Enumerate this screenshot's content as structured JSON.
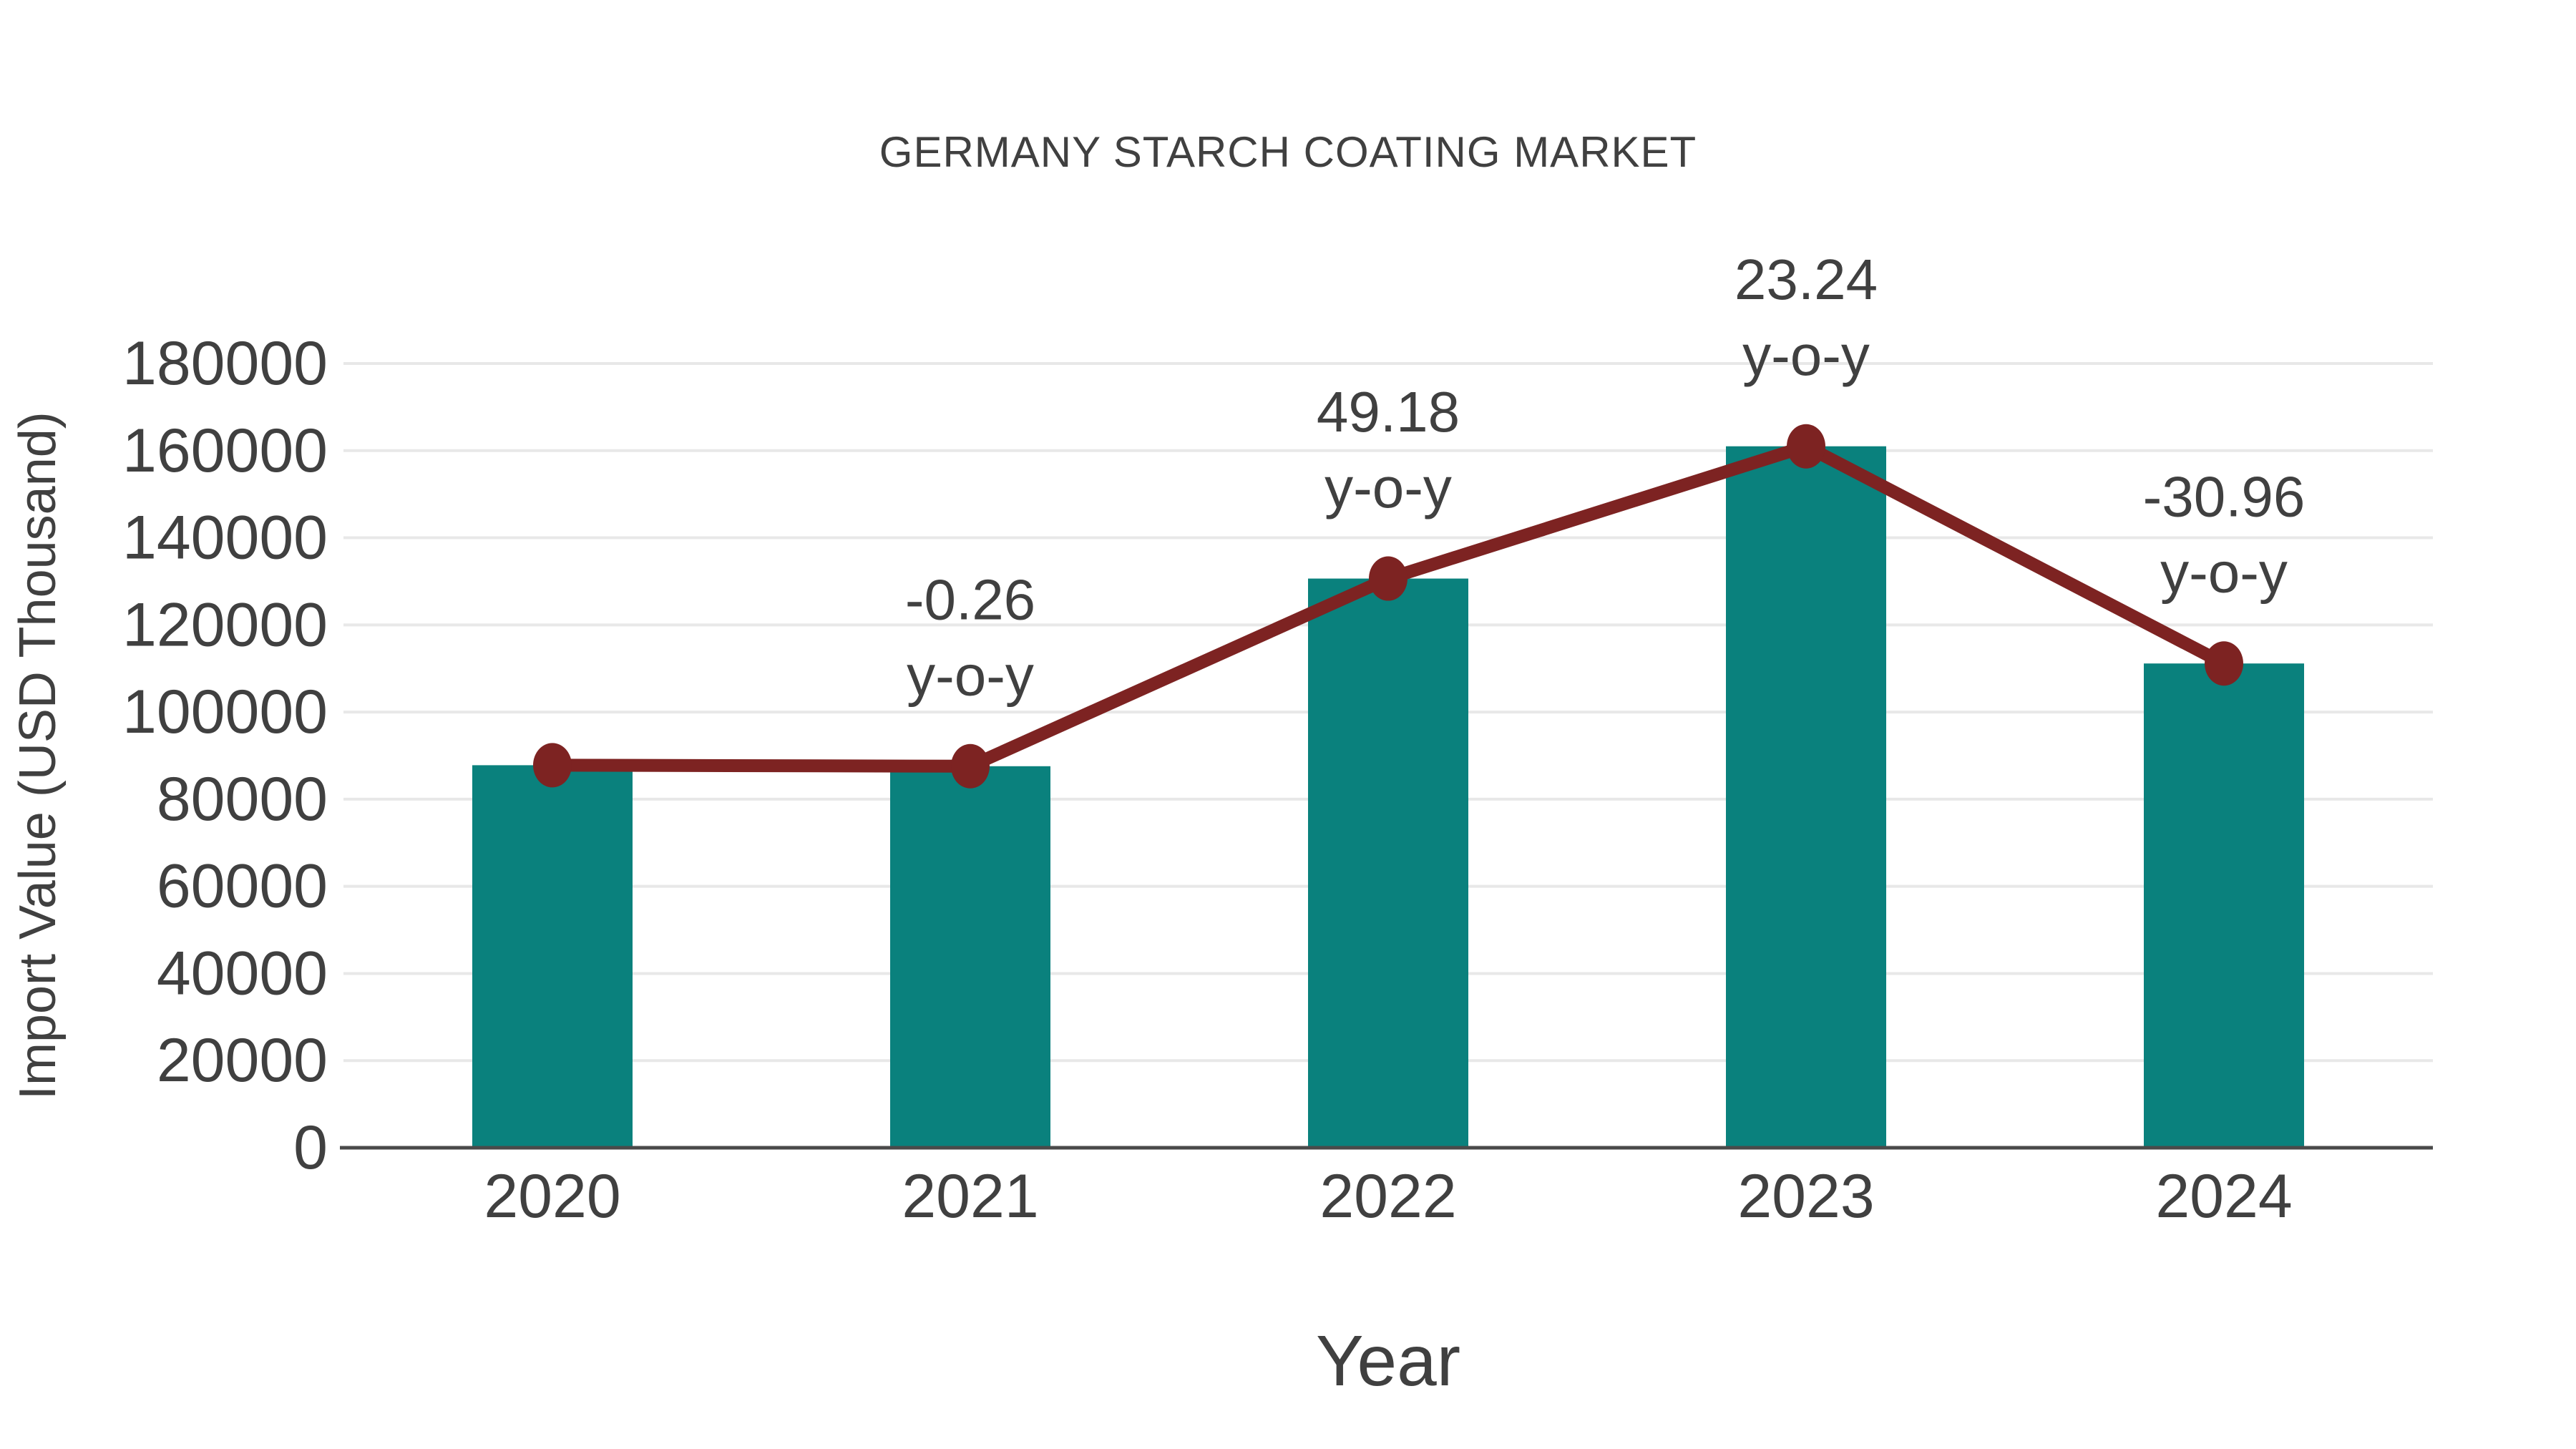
{
  "title": "GERMANY STARCH COATING MARKET",
  "chart_data": {
    "type": "bar",
    "categories": [
      "2020",
      "2021",
      "2022",
      "2023",
      "2024"
    ],
    "series": [
      {
        "name": "Import Value",
        "type": "bar",
        "values": [
          87800,
          87570,
          130640,
          161000,
          111150
        ]
      },
      {
        "name": "y-o-y growth line",
        "type": "line",
        "values": [
          87800,
          87570,
          130640,
          161000,
          111150
        ],
        "labels": [
          "",
          "-0.26",
          "49.18",
          "23.24",
          "-30.96"
        ],
        "label_suffix": "y-o-y"
      }
    ],
    "title": "GERMANY STARCH COATING MARKET",
    "xlabel": "Year",
    "ylabel": "Import Value (USD Thousand)",
    "ylim": [
      0,
      180000
    ],
    "yticks": [
      0,
      20000,
      40000,
      60000,
      80000,
      100000,
      120000,
      140000,
      160000,
      180000
    ],
    "grid": true,
    "legend": "none"
  },
  "colors": {
    "bar": "#0a817d",
    "line": "#7d2322",
    "marker": "#7d2322",
    "text": "#404040",
    "grid": "#e8e8e8",
    "axis": "#4a4a4a",
    "background": "#ffffff"
  }
}
